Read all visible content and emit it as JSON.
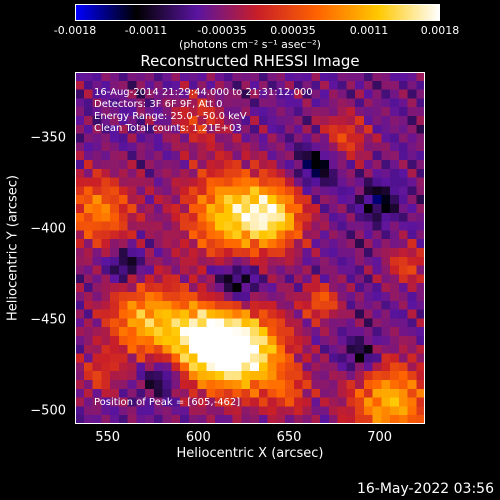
{
  "colorbar": {
    "ticks": [
      "-0.0018",
      "-0.0011",
      "-0.00035",
      "0.00035",
      "0.0011",
      "0.0018"
    ],
    "tick_values": [
      -0.0018,
      -0.0011,
      -0.00035,
      0.00035,
      0.0011,
      0.0018
    ],
    "range": [
      -0.0018,
      0.0018
    ],
    "units": "(photons cm⁻² s⁻¹ asec⁻²)"
  },
  "info": {
    "time_range": "16-Aug-2014 21:29:44.000 to 21:31:12.000",
    "detectors": "Detectors: 3F 6F 9F, Att 0",
    "energy": "Energy Range: 25.0 - 50.0 keV",
    "clean": "Clean    Total counts: 1.21E+03",
    "peak": "Position of Peak = [605,-462]"
  },
  "timestamp": "16-May-2022 03:56",
  "chart_data": {
    "type": "heatmap",
    "title": "Reconstructed RHESSI Image",
    "xlabel": "Heliocentric X (arcsec)",
    "ylabel": "Heliocentric Y (arcsec)",
    "xlim": [
      532,
      725
    ],
    "ylim": [
      -507,
      -314
    ],
    "xticks": [
      550,
      600,
      650,
      700
    ],
    "yticks": [
      -350,
      -400,
      -450,
      -500
    ],
    "xtick_labels": [
      "550",
      "600",
      "650",
      "700"
    ],
    "ytick_labels": [
      "−350",
      "−400",
      "−450",
      "−500"
    ],
    "colormap": [
      "#0000ff",
      "#000000",
      "#5a14a0",
      "#c81e28",
      "#ff6400",
      "#ffc800",
      "#ffffff"
    ],
    "grid_size": [
      40,
      40
    ],
    "blobs": [
      {
        "x": 605,
        "y": -462,
        "sigma": 16,
        "amp": 1.0
      },
      {
        "x": 628,
        "y": -468,
        "sigma": 16,
        "amp": 0.8
      },
      {
        "x": 570,
        "y": -450,
        "sigma": 15,
        "amp": 0.65
      },
      {
        "x": 618,
        "y": -392,
        "sigma": 18,
        "amp": 0.75
      },
      {
        "x": 642,
        "y": -393,
        "sigma": 12,
        "amp": 0.65
      },
      {
        "x": 545,
        "y": -390,
        "sigma": 14,
        "amp": 0.55
      },
      {
        "x": 706,
        "y": -495,
        "sigma": 16,
        "amp": 0.7
      },
      {
        "x": 668,
        "y": -440,
        "sigma": 7,
        "amp": 0.45
      },
      {
        "x": 680,
        "y": -350,
        "sigma": 10,
        "amp": 0.35
      },
      {
        "x": 600,
        "y": -340,
        "sigma": 10,
        "amp": 0.3
      },
      {
        "x": 715,
        "y": -420,
        "sigma": 8,
        "amp": 0.35
      },
      {
        "x": 650,
        "y": -490,
        "sigma": 9,
        "amp": 0.3
      },
      {
        "x": 545,
        "y": -480,
        "sigma": 8,
        "amp": 0.3
      }
    ],
    "negative_regions": [
      {
        "x": 620,
        "y": -430,
        "sigma": 10,
        "amp": 0.45
      },
      {
        "x": 580,
        "y": -480,
        "sigma": 8,
        "amp": 0.4
      },
      {
        "x": 665,
        "y": -365,
        "sigma": 8,
        "amp": 0.4
      },
      {
        "x": 690,
        "y": -470,
        "sigma": 7,
        "amp": 0.35
      },
      {
        "x": 560,
        "y": -420,
        "sigma": 7,
        "amp": 0.35
      },
      {
        "x": 700,
        "y": -385,
        "sigma": 7,
        "amp": 0.35
      }
    ]
  }
}
